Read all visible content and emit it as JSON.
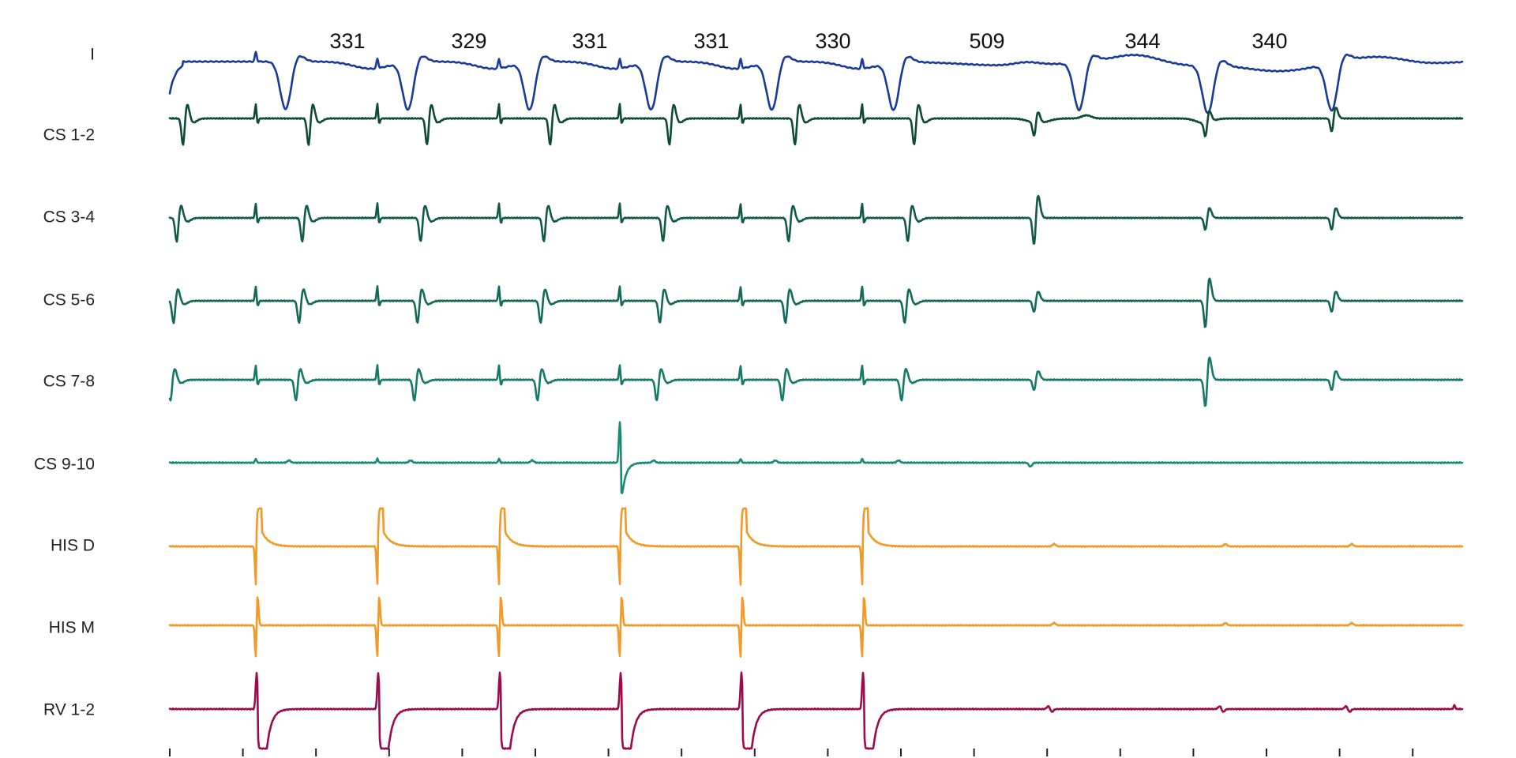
{
  "chart_data": {
    "type": "line",
    "title": "",
    "xlabel": "",
    "ylabel": "",
    "grid": false,
    "legend": "none",
    "x_ticks_count": 18,
    "intervals_ms": [
      "331",
      "329",
      "331",
      "331",
      "330",
      "509",
      "344",
      "340"
    ],
    "pacing_beats": 6,
    "beat_count": 10,
    "channels": [
      {
        "name": "I",
        "color": "#1a3a9a"
      },
      {
        "name": "CS 1-2",
        "color": "#0f4a34"
      },
      {
        "name": "CS 3-4",
        "color": "#115a48"
      },
      {
        "name": "CS 5-6",
        "color": "#136a58"
      },
      {
        "name": "CS 7-8",
        "color": "#167a68"
      },
      {
        "name": "CS 9-10",
        "color": "#1a8a76"
      },
      {
        "name": "HIS D",
        "color": "#f29a28"
      },
      {
        "name": "HIS M",
        "color": "#f29a28"
      },
      {
        "name": "RV 1-2",
        "color": "#9e0a4e"
      }
    ]
  }
}
